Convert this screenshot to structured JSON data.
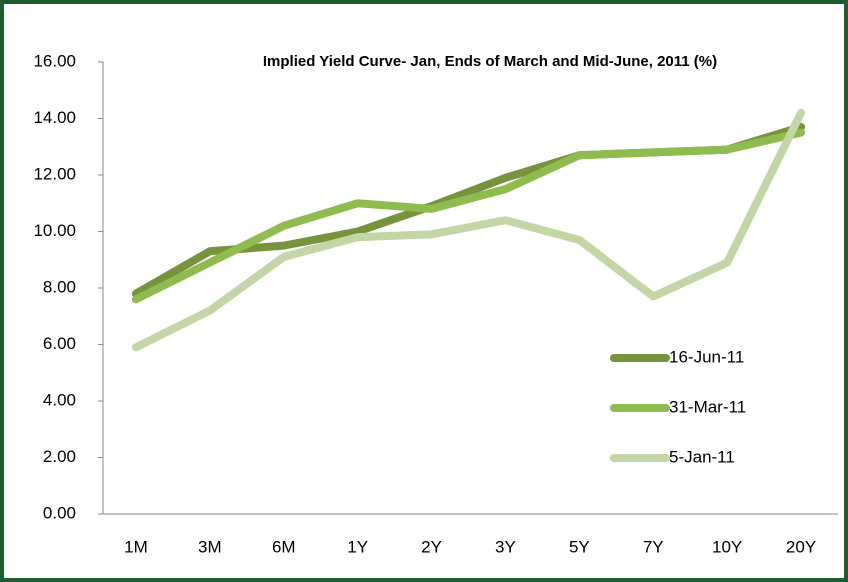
{
  "chart_data": {
    "type": "line",
    "title": "Implied Yield Curve- Jan, Ends of March and Mid-June, 2011 (%)",
    "categories": [
      "1M",
      "3M",
      "6M",
      "1Y",
      "2Y",
      "3Y",
      "5Y",
      "7Y",
      "10Y",
      "20Y"
    ],
    "series": [
      {
        "name": "16-Jun-11",
        "color": "#77933c",
        "values": [
          7.8,
          9.3,
          9.5,
          10.0,
          10.9,
          11.9,
          12.7,
          12.8,
          12.9,
          13.7
        ]
      },
      {
        "name": "31-Mar-11",
        "color": "#8fbc4f",
        "values": [
          7.6,
          8.9,
          10.2,
          11.0,
          10.8,
          11.5,
          12.7,
          12.8,
          12.9,
          13.5
        ]
      },
      {
        "name": "5-Jan-11",
        "color": "#c3d6a5",
        "values": [
          5.9,
          7.2,
          9.1,
          9.8,
          9.9,
          10.4,
          9.7,
          7.7,
          8.9,
          14.2
        ]
      }
    ],
    "ylim": [
      0,
      16
    ],
    "yticks": [
      {
        "value": 0,
        "label": "0.00"
      },
      {
        "value": 2,
        "label": "2.00"
      },
      {
        "value": 4,
        "label": "4.00"
      },
      {
        "value": 6,
        "label": "6.00"
      },
      {
        "value": 8,
        "label": "8.00"
      },
      {
        "value": 10,
        "label": "10.00"
      },
      {
        "value": 12,
        "label": "12.00"
      },
      {
        "value": 14,
        "label": "14.00"
      },
      {
        "value": 16,
        "label": "16.00"
      }
    ],
    "grid": false,
    "legend": "right"
  }
}
